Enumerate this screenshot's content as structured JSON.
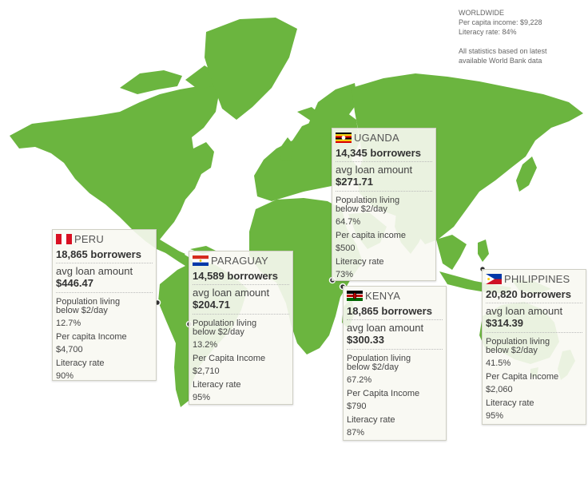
{
  "worldwide": {
    "title": "WORLDWIDE",
    "income": "Per capita income: $9,228",
    "literacy": "Literacy rate: 84%",
    "note_line1": "All statistics based on latest",
    "note_line2": "available  World Bank data"
  },
  "colors": {
    "land": "#6bb53f",
    "card_background": "#f8f8f2"
  },
  "countries": {
    "peru": {
      "name": "PERU",
      "flag": "peru-flag",
      "borrowers": "18,865 borrowers",
      "avg_label": "avg loan amount",
      "avg_value": "$446.47",
      "poverty_label_1": "Population living",
      "poverty_label_2": "below $2/day",
      "poverty_value": "12.7%",
      "income_label": "Per capita Income",
      "income_value": "$4,700",
      "literacy_label": "Literacy rate",
      "literacy_value": "90%"
    },
    "paraguay": {
      "name": "PARAGUAY",
      "flag": "paraguay-flag",
      "borrowers": "14,589 borrowers",
      "avg_label": "avg loan amount",
      "avg_value": "$204.71",
      "poverty_label_1": "Population living",
      "poverty_label_2": "below $2/day",
      "poverty_value": "13.2%",
      "income_label": "Per Capita Income",
      "income_value": "$2,710",
      "literacy_label": "Literacy rate",
      "literacy_value": "95%"
    },
    "uganda": {
      "name": "UGANDA",
      "flag": "uganda-flag",
      "borrowers": "14,345 borrowers",
      "avg_label": "avg loan amount",
      "avg_value": "$271.71",
      "poverty_label_1": "Population living",
      "poverty_label_2": "below $2/day",
      "poverty_value": "64.7%",
      "income_label": "Per capita income",
      "income_value": "$500",
      "literacy_label": "Literacy rate",
      "literacy_value": "73%"
    },
    "kenya": {
      "name": "KENYA",
      "flag": "kenya-flag",
      "borrowers": "18,865 borrowers",
      "avg_label": "avg loan amount",
      "avg_value": "$300.33",
      "poverty_label_1": "Population living",
      "poverty_label_2": "below $2/day",
      "poverty_value": "67.2%",
      "income_label": "Per Capita Income",
      "income_value": "$790",
      "literacy_label": "Literacy rate",
      "literacy_value": "87%"
    },
    "philippines": {
      "name": "PHILIPPINES",
      "flag": "philippines-flag",
      "borrowers": "20,820 borrowers",
      "avg_label": "avg loan amount",
      "avg_value": "$314.39",
      "poverty_label_1": "Population living",
      "poverty_label_2": "below $2/day",
      "poverty_value": "41.5%",
      "income_label": "Per Capita Income",
      "income_value": "$2,060",
      "literacy_label": "Literacy rate",
      "literacy_value": "95%"
    }
  }
}
